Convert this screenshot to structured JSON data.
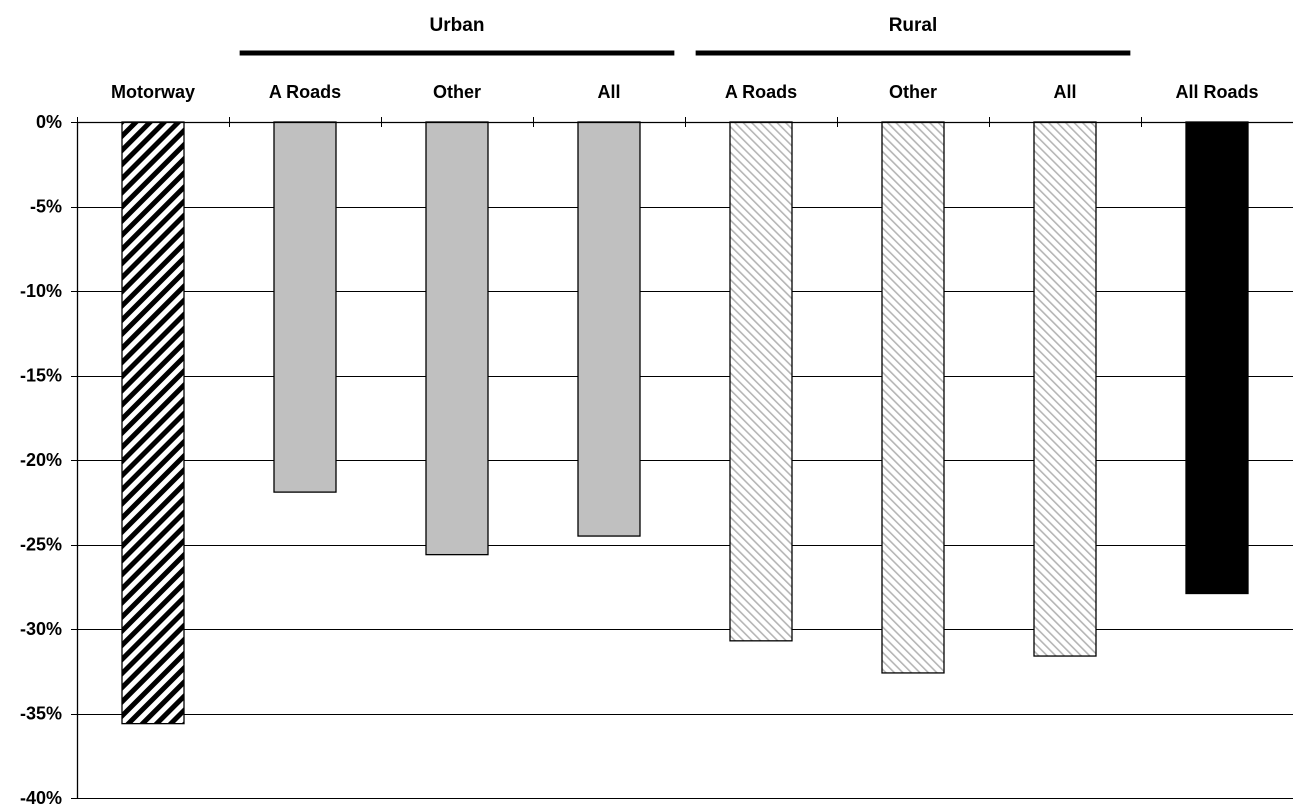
{
  "chart_data": {
    "type": "bar",
    "title": "",
    "xlabel": "",
    "ylabel": "",
    "ylim": [
      -40,
      0
    ],
    "yticks": [
      0,
      -5,
      -10,
      -15,
      -20,
      -25,
      -30,
      -35,
      -40
    ],
    "ytick_labels": [
      "0%",
      "-5%",
      "-10%",
      "-15%",
      "-20%",
      "-25%",
      "-30%",
      "-35%",
      "-40%"
    ],
    "grid": true,
    "categories": [
      "Motorway",
      "A Roads",
      "Other",
      "All",
      "A Roads",
      "Other",
      "All",
      "All Roads"
    ],
    "values": [
      -35.6,
      -21.9,
      -25.6,
      -24.5,
      -30.7,
      -32.6,
      -31.6,
      -27.9
    ],
    "fills": [
      "hatch-dark",
      "solid-grey",
      "solid-grey",
      "solid-grey",
      "hatch-light",
      "hatch-light",
      "hatch-light",
      "solid-black"
    ],
    "colors": {
      "solid-grey": "#c0c0c0",
      "solid-black": "#000000",
      "hatch-dark": "#000000",
      "hatch-light": "#bdbdbd",
      "gridline": "#000000"
    },
    "groups": [
      {
        "label": "Urban",
        "categories": [
          1,
          2,
          3
        ]
      },
      {
        "label": "Rural",
        "categories": [
          4,
          5,
          6
        ]
      }
    ]
  }
}
